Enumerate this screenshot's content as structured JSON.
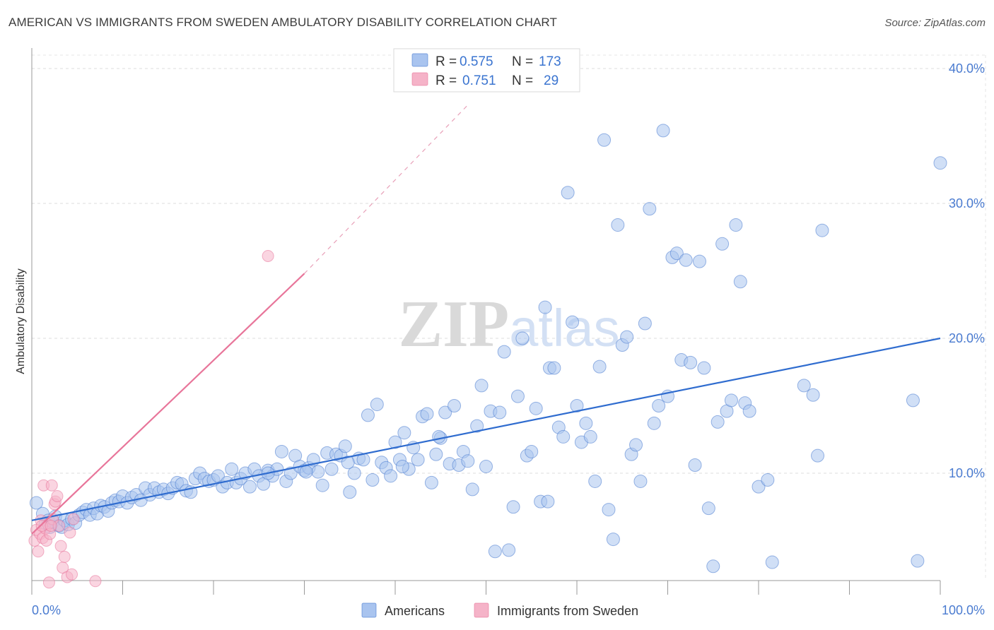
{
  "title": "AMERICAN VS IMMIGRANTS FROM SWEDEN AMBULATORY DISABILITY CORRELATION CHART",
  "source": "Source: ZipAtlas.com",
  "watermark": "ZIPatlas",
  "legend": [
    {
      "r_label": "R =",
      "r_value": "0.575",
      "n_label": "N =",
      "n_value": "173",
      "color": "#a9c4ef"
    },
    {
      "r_label": "R =",
      "r_value": "0.751",
      "n_label": "N =",
      "n_value": "29",
      "color": "#f5b3c8"
    }
  ],
  "bottom_legend": [
    "Americans",
    "Immigrants from Sweden"
  ],
  "chart_data": {
    "type": "scatter",
    "ylabel": "Ambulatory Disability",
    "xlim": [
      0,
      100
    ],
    "ylim": [
      0,
      42
    ],
    "x_ticks": [
      "0.0%",
      "100.0%"
    ],
    "y_ticks": [
      {
        "value": 10,
        "label": "10.0%"
      },
      {
        "value": 20,
        "label": "20.0%"
      },
      {
        "value": 30,
        "label": "30.0%"
      },
      {
        "value": 40,
        "label": "40.0%"
      }
    ],
    "grid": true,
    "series": [
      {
        "name": "Americans",
        "color": "#4a7bd0",
        "fill": "#a9c4ef",
        "trend": {
          "x": [
            0,
            100
          ],
          "y": [
            6.5,
            20.0
          ]
        },
        "points": [
          [
            0.5,
            7.8
          ],
          [
            1.2,
            7.0
          ],
          [
            1.5,
            6.3
          ],
          [
            1.8,
            6.5
          ],
          [
            2.0,
            6.0
          ],
          [
            2.3,
            6.4
          ],
          [
            2.6,
            6.8
          ],
          [
            3.0,
            6.1
          ],
          [
            3.3,
            6.0
          ],
          [
            3.6,
            6.5
          ],
          [
            4.0,
            6.2
          ],
          [
            4.4,
            6.6
          ],
          [
            4.8,
            6.3
          ],
          [
            5.2,
            6.9
          ],
          [
            5.6,
            7.1
          ],
          [
            6.0,
            7.3
          ],
          [
            6.4,
            6.9
          ],
          [
            6.8,
            7.4
          ],
          [
            7.2,
            7.0
          ],
          [
            7.6,
            7.6
          ],
          [
            8.0,
            7.5
          ],
          [
            8.4,
            7.2
          ],
          [
            8.8,
            7.8
          ],
          [
            9.2,
            8.0
          ],
          [
            9.6,
            7.9
          ],
          [
            10.0,
            8.3
          ],
          [
            10.5,
            7.8
          ],
          [
            11.0,
            8.2
          ],
          [
            11.5,
            8.4
          ],
          [
            12.0,
            8.0
          ],
          [
            12.5,
            8.9
          ],
          [
            13.0,
            8.4
          ],
          [
            13.5,
            8.9
          ],
          [
            14.0,
            8.6
          ],
          [
            14.5,
            8.8
          ],
          [
            15.0,
            8.5
          ],
          [
            15.5,
            8.9
          ],
          [
            16.0,
            9.3
          ],
          [
            16.5,
            9.2
          ],
          [
            17.0,
            8.7
          ],
          [
            17.5,
            8.6
          ],
          [
            18.0,
            9.6
          ],
          [
            18.5,
            10.0
          ],
          [
            19.0,
            9.6
          ],
          [
            19.5,
            9.4
          ],
          [
            20.0,
            9.5
          ],
          [
            20.5,
            9.8
          ],
          [
            21.0,
            9.0
          ],
          [
            21.5,
            9.3
          ],
          [
            22.0,
            10.3
          ],
          [
            22.5,
            9.3
          ],
          [
            23.0,
            9.6
          ],
          [
            23.5,
            10.0
          ],
          [
            24.0,
            9.0
          ],
          [
            24.5,
            10.3
          ],
          [
            25.0,
            9.8
          ],
          [
            25.5,
            9.2
          ],
          [
            26.0,
            10.2
          ],
          [
            26.5,
            9.8
          ],
          [
            27.0,
            10.3
          ],
          [
            27.5,
            11.6
          ],
          [
            28.0,
            9.4
          ],
          [
            28.5,
            10.0
          ],
          [
            29.0,
            11.3
          ],
          [
            29.5,
            10.5
          ],
          [
            30.0,
            10.2
          ],
          [
            30.5,
            10.4
          ],
          [
            31.0,
            11.0
          ],
          [
            31.5,
            10.1
          ],
          [
            32.0,
            9.1
          ],
          [
            32.5,
            11.5
          ],
          [
            33.0,
            10.3
          ],
          [
            33.5,
            11.4
          ],
          [
            34.0,
            11.3
          ],
          [
            34.5,
            12.0
          ],
          [
            35.0,
            8.6
          ],
          [
            35.5,
            10.0
          ],
          [
            36.0,
            11.1
          ],
          [
            36.5,
            11.0
          ],
          [
            37.0,
            14.3
          ],
          [
            37.5,
            9.5
          ],
          [
            38.0,
            15.1
          ],
          [
            38.5,
            10.8
          ],
          [
            39.0,
            10.4
          ],
          [
            39.5,
            9.8
          ],
          [
            40.0,
            12.3
          ],
          [
            40.5,
            11.0
          ],
          [
            41.0,
            13.0
          ],
          [
            41.5,
            10.3
          ],
          [
            42.0,
            11.9
          ],
          [
            42.5,
            11.0
          ],
          [
            43.0,
            14.2
          ],
          [
            43.5,
            14.4
          ],
          [
            44.0,
            9.3
          ],
          [
            44.5,
            11.4
          ],
          [
            45.0,
            12.6
          ],
          [
            45.5,
            14.5
          ],
          [
            46.0,
            10.7
          ],
          [
            46.5,
            15.0
          ],
          [
            47.0,
            10.6
          ],
          [
            47.5,
            11.6
          ],
          [
            48.0,
            10.9
          ],
          [
            48.5,
            8.8
          ],
          [
            49.0,
            13.5
          ],
          [
            49.5,
            16.5
          ],
          [
            50.0,
            10.5
          ],
          [
            50.5,
            14.6
          ],
          [
            51.0,
            4.2
          ],
          [
            51.5,
            14.5
          ],
          [
            52.0,
            19.0
          ],
          [
            52.5,
            4.3
          ],
          [
            53.0,
            7.5
          ],
          [
            53.5,
            15.7
          ],
          [
            54.0,
            20.0
          ],
          [
            54.5,
            11.3
          ],
          [
            55.0,
            11.6
          ],
          [
            55.5,
            14.8
          ],
          [
            56.0,
            7.9
          ],
          [
            56.5,
            22.3
          ],
          [
            57.0,
            17.8
          ],
          [
            57.5,
            17.8
          ],
          [
            58.0,
            13.4
          ],
          [
            58.5,
            12.7
          ],
          [
            59.0,
            30.8
          ],
          [
            59.5,
            21.2
          ],
          [
            60.0,
            15.0
          ],
          [
            60.5,
            12.3
          ],
          [
            61.0,
            13.7
          ],
          [
            61.5,
            12.7
          ],
          [
            62.0,
            9.4
          ],
          [
            62.5,
            17.9
          ],
          [
            63.0,
            34.7
          ],
          [
            63.5,
            7.3
          ],
          [
            64.0,
            5.1
          ],
          [
            64.5,
            28.4
          ],
          [
            65.0,
            19.5
          ],
          [
            65.5,
            20.1
          ],
          [
            66.0,
            11.4
          ],
          [
            66.5,
            12.1
          ],
          [
            67.0,
            9.4
          ],
          [
            67.5,
            21.1
          ],
          [
            68.0,
            29.6
          ],
          [
            68.5,
            13.7
          ],
          [
            69.0,
            15.0
          ],
          [
            69.5,
            35.4
          ],
          [
            70.0,
            15.7
          ],
          [
            70.5,
            26.0
          ],
          [
            71.0,
            26.3
          ],
          [
            71.5,
            18.4
          ],
          [
            72.0,
            25.8
          ],
          [
            72.5,
            18.2
          ],
          [
            73.0,
            10.6
          ],
          [
            73.5,
            25.7
          ],
          [
            74.0,
            17.8
          ],
          [
            74.5,
            7.4
          ],
          [
            75.0,
            3.1
          ],
          [
            75.5,
            13.8
          ],
          [
            76.0,
            27.0
          ],
          [
            76.5,
            14.6
          ],
          [
            77.0,
            15.4
          ],
          [
            77.5,
            28.4
          ],
          [
            78.0,
            24.2
          ],
          [
            78.5,
            15.2
          ],
          [
            79.0,
            14.6
          ],
          [
            80.0,
            9.0
          ],
          [
            81.0,
            9.5
          ],
          [
            81.5,
            3.4
          ],
          [
            85.0,
            16.5
          ],
          [
            86.0,
            15.8
          ],
          [
            86.5,
            11.3
          ],
          [
            87.0,
            28.0
          ],
          [
            97.0,
            15.4
          ],
          [
            97.5,
            3.5
          ],
          [
            100.0,
            33.0
          ],
          [
            26.0,
            10.0
          ],
          [
            30.2,
            10.1
          ],
          [
            34.8,
            10.8
          ],
          [
            40.8,
            10.5
          ],
          [
            44.8,
            12.7
          ],
          [
            56.8,
            7.9
          ]
        ]
      },
      {
        "name": "Immigrants from Sweden",
        "color": "#e8759a",
        "fill": "#f5b3c8",
        "trend": {
          "x": [
            0,
            30
          ],
          "y": [
            5.5,
            24.8
          ]
        },
        "trend_dashed": {
          "x": [
            30,
            48
          ],
          "y": [
            24.8,
            37.3
          ]
        },
        "points": [
          [
            0.3,
            5.0
          ],
          [
            0.5,
            5.8
          ],
          [
            0.7,
            4.2
          ],
          [
            0.9,
            5.5
          ],
          [
            1.0,
            6.5
          ],
          [
            1.2,
            5.2
          ],
          [
            1.3,
            9.1
          ],
          [
            1.5,
            5.9
          ],
          [
            1.6,
            5.0
          ],
          [
            1.8,
            6.2
          ],
          [
            1.9,
            1.9
          ],
          [
            2.0,
            5.5
          ],
          [
            2.2,
            9.1
          ],
          [
            2.3,
            6.6
          ],
          [
            2.5,
            7.7
          ],
          [
            2.6,
            7.9
          ],
          [
            2.8,
            8.3
          ],
          [
            3.0,
            6.1
          ],
          [
            3.2,
            4.6
          ],
          [
            3.4,
            3.0
          ],
          [
            3.6,
            3.8
          ],
          [
            3.9,
            2.3
          ],
          [
            4.2,
            5.6
          ],
          [
            4.4,
            2.5
          ],
          [
            4.6,
            6.6
          ],
          [
            7.0,
            2.0
          ],
          [
            26.0,
            26.1
          ],
          [
            1.1,
            6.1
          ],
          [
            2.1,
            6.1
          ]
        ]
      }
    ]
  }
}
